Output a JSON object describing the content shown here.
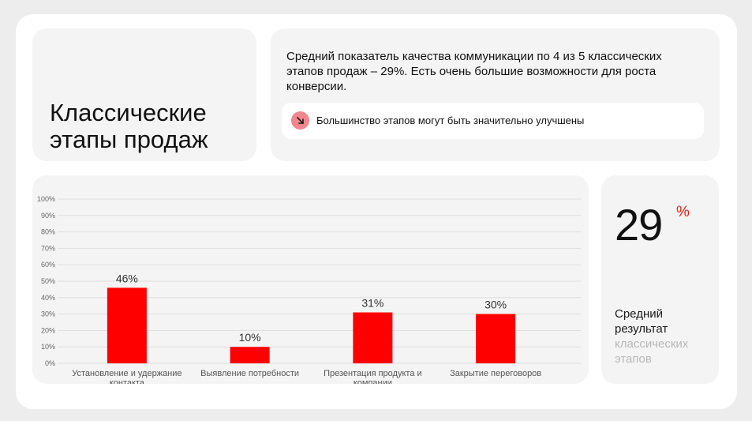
{
  "title": "Классические этапы продаж",
  "summary": {
    "text": "Средний показатель качества коммуникации по 4 из 5 классических этапов продаж – 29%. Есть очень большие возможности для роста конверсии.",
    "note_icon": "arrow-down-right-icon",
    "note_text": "Большинство этапов могут быть значительно улучшены",
    "note_icon_color": "#f2868d"
  },
  "result": {
    "value": "29",
    "unit": "%",
    "label_dark": "Средний результат",
    "label_light": "классических этапов",
    "accent_color": "#e61e1e"
  },
  "chart_data": {
    "type": "bar",
    "categories": [
      [
        "Установление и удержание",
        "контакта"
      ],
      [
        "Выявление потребности"
      ],
      [
        "Презентация продукта и",
        "компании"
      ],
      [
        "Закрытие переговоров"
      ]
    ],
    "values": [
      46,
      10,
      31,
      30
    ],
    "value_labels": [
      "46%",
      "10%",
      "31%",
      "30%"
    ],
    "yticks": [
      "0%",
      "10%",
      "20%",
      "30%",
      "40%",
      "50%",
      "60%",
      "70%",
      "80%",
      "90%",
      "100%"
    ],
    "ylim": [
      0,
      100
    ],
    "bar_color": "#ff0000",
    "grid": true
  }
}
